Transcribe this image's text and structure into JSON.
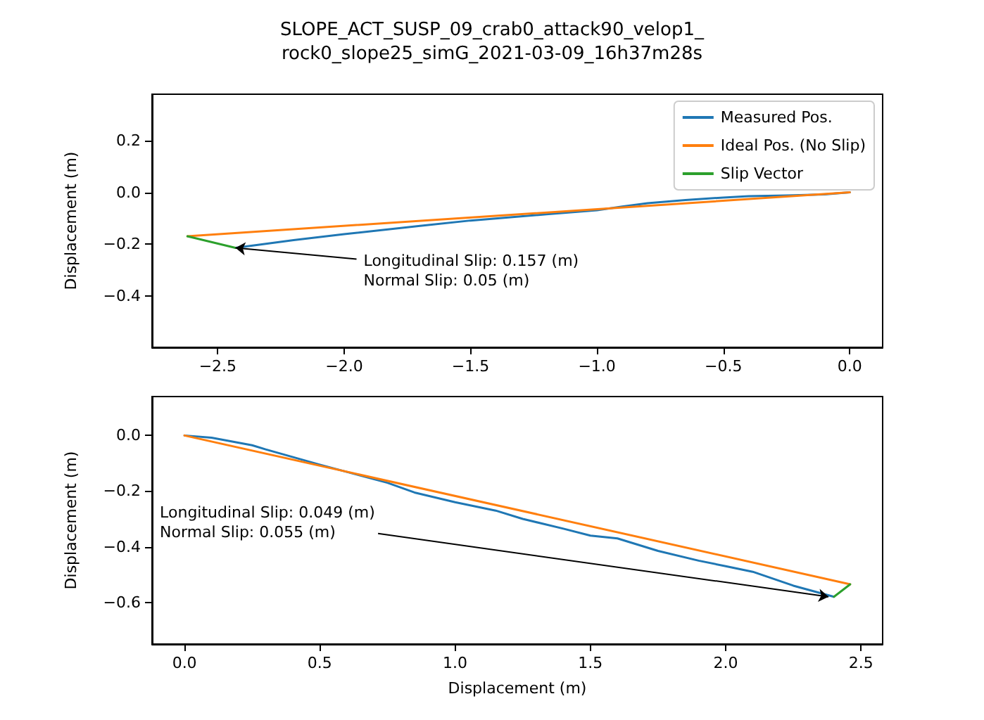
{
  "chart_data": [
    {
      "type": "line",
      "title": "SLOPE_ACT_SUSP_09_crab0_attack90_velop1_\nrock0_slope25_simG_2021-03-09_16h37m28s",
      "ylabel": "Displacement (m)",
      "legend": "top right",
      "xlim": [
        -2.76,
        0.13
      ],
      "ylim": [
        -0.6,
        0.38
      ],
      "xticks": [
        {
          "value": -2.5,
          "label": "−2.5"
        },
        {
          "value": -2.0,
          "label": "−2.0"
        },
        {
          "value": -1.5,
          "label": "−1.5"
        },
        {
          "value": -1.0,
          "label": "−1.0"
        },
        {
          "value": -0.5,
          "label": "−0.5"
        },
        {
          "value": 0.0,
          "label": "0.0"
        }
      ],
      "yticks": [
        {
          "value": -0.4,
          "label": "−0.4"
        },
        {
          "value": -0.2,
          "label": "−0.2"
        },
        {
          "value": 0.0,
          "label": "0.0"
        },
        {
          "value": 0.2,
          "label": "0.2"
        }
      ],
      "series": [
        {
          "name": "Measured Pos.",
          "color": "#1f77b4",
          "x": [
            0,
            -0.1,
            -0.25,
            -0.4,
            -0.5,
            -0.65,
            -0.8,
            -0.9,
            -1.0,
            -1.2,
            -1.5,
            -1.7,
            -2.0,
            -2.2,
            -2.43
          ],
          "values": [
            0,
            -0.008,
            -0.012,
            -0.015,
            -0.02,
            -0.03,
            -0.042,
            -0.055,
            -0.069,
            -0.085,
            -0.109,
            -0.13,
            -0.162,
            -0.185,
            -0.215
          ]
        },
        {
          "name": "Ideal Pos. (No Slip)",
          "color": "#ff7f0e",
          "x": [
            0,
            -2.62
          ],
          "values": [
            0,
            -0.17
          ]
        },
        {
          "name": "Slip Vector",
          "color": "#2ca02c",
          "x": [
            -2.62,
            -2.43
          ],
          "values": [
            -0.17,
            -0.215
          ]
        }
      ],
      "annotations": [
        {
          "text": "Longitudinal Slip: 0.157 (m)\nNormal Slip: 0.05 (m)",
          "x": -2.43,
          "y": -0.215
        }
      ]
    },
    {
      "type": "line",
      "xlabel": "Displacement (m)",
      "ylabel": "Displacement (m)",
      "xlim": [
        -0.12,
        2.58
      ],
      "ylim": [
        -0.75,
        0.14
      ],
      "xticks": [
        {
          "value": 0.0,
          "label": "0.0"
        },
        {
          "value": 0.5,
          "label": "0.5"
        },
        {
          "value": 1.0,
          "label": "1.0"
        },
        {
          "value": 1.5,
          "label": "1.5"
        },
        {
          "value": 2.0,
          "label": "2.0"
        },
        {
          "value": 2.5,
          "label": "2.5"
        }
      ],
      "yticks": [
        {
          "value": -0.6,
          "label": "−0.6"
        },
        {
          "value": -0.4,
          "label": "−0.4"
        },
        {
          "value": -0.2,
          "label": "−0.2"
        },
        {
          "value": 0.0,
          "label": "0.0"
        }
      ],
      "series": [
        {
          "color": "#1f77b4",
          "x": [
            0,
            0.1,
            0.25,
            0.3,
            0.5,
            0.75,
            0.85,
            1.0,
            1.15,
            1.25,
            1.4,
            1.5,
            1.6,
            1.75,
            1.9,
            2.0,
            2.1,
            2.25,
            2.4
          ],
          "values": [
            0,
            -0.008,
            -0.035,
            -0.05,
            -0.105,
            -0.17,
            -0.205,
            -0.24,
            -0.27,
            -0.3,
            -0.335,
            -0.36,
            -0.37,
            -0.415,
            -0.45,
            -0.47,
            -0.49,
            -0.54,
            -0.58
          ]
        },
        {
          "color": "#ff7f0e",
          "x": [
            0,
            2.46
          ],
          "values": [
            0,
            -0.535
          ]
        },
        {
          "color": "#2ca02c",
          "x": [
            2.4,
            2.46
          ],
          "values": [
            -0.58,
            -0.535
          ]
        }
      ],
      "annotations": [
        {
          "text": "Longitudinal Slip: 0.049 (m)\nNormal Slip: 0.055 (m)",
          "x": 2.38,
          "y": -0.58
        }
      ]
    }
  ]
}
